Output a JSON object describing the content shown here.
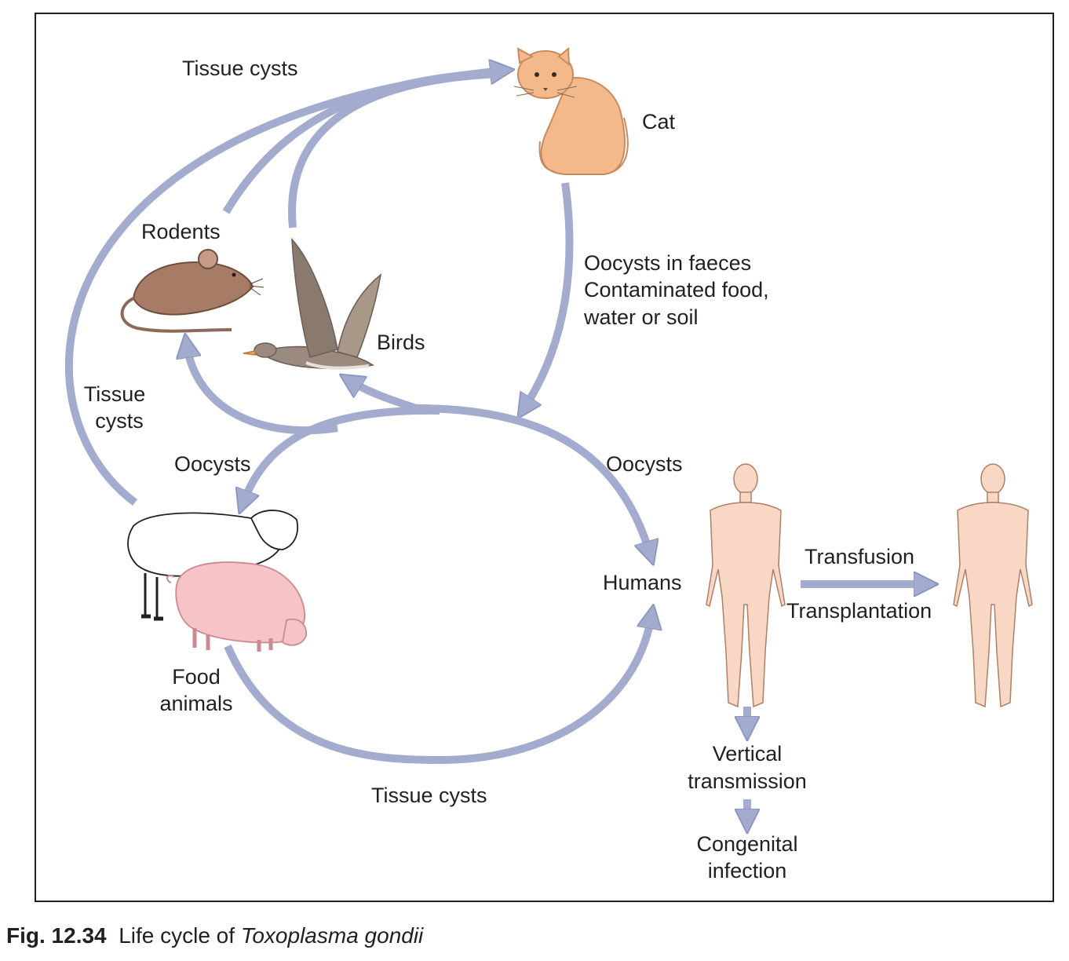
{
  "nodes": {
    "cat": "Cat",
    "rodents": "Rodents",
    "birds": "Birds",
    "food_animals_line1": "Food",
    "food_animals_line2": "animals",
    "humans": "Humans",
    "vertical_line1": "Vertical",
    "vertical_line2": "transmission",
    "congenital_line1": "Congenital",
    "congenital_line2": "infection"
  },
  "edges": {
    "tissue_cysts_top": "Tissue cysts",
    "tissue_cysts_left_line1": "Tissue",
    "tissue_cysts_left_line2": "cysts",
    "oocysts_faeces_line1": "Oocysts in faeces",
    "oocysts_faeces_line2": "Contaminated food,",
    "oocysts_faeces_line3": "water or soil",
    "oocysts_left": "Oocysts",
    "oocysts_right": "Oocysts",
    "tissue_cysts_bottom": "Tissue cysts",
    "transfusion": "Transfusion",
    "transplantation": "Transplantation"
  },
  "caption": {
    "label": "Fig. 12.34",
    "text": "Life cycle of ",
    "organism": "Toxoplasma gondii"
  },
  "colors": {
    "arrow": "#a3abcf",
    "arrow_outline": "#8e97c2",
    "cat_fur": "#f3b98a",
    "rodent_fur": "#a67c66",
    "bird_body": "#9b8a7e",
    "sheep_wool": "#ffffff",
    "pig_skin": "#f6c3c6",
    "human_skin": "#f8d8c4",
    "text": "#231f20"
  }
}
